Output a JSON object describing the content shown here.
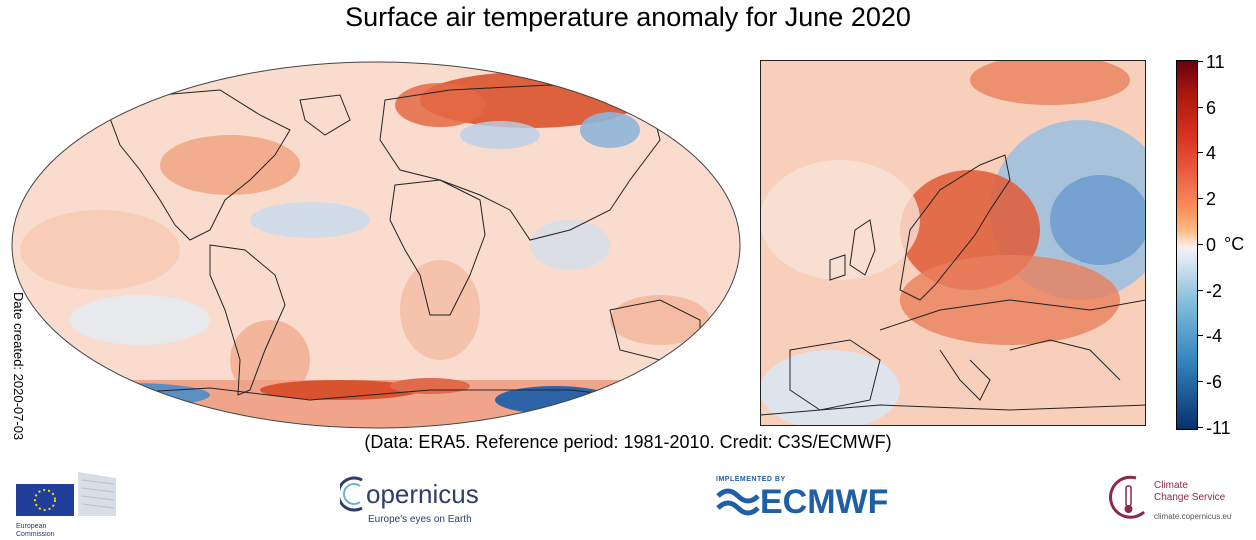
{
  "title": "Surface air temperature anomaly for June 2020",
  "side_note": "Date created: 2020-07-03",
  "credit": "(Data: ERA5.  Reference period: 1981-2010.  Credit: C3S/ECMWF)",
  "colorbar": {
    "unit": "°C",
    "ticks": [
      "11",
      "6",
      "4",
      "2",
      "0",
      "-2",
      "-4",
      "-6",
      "-11"
    ]
  },
  "logos": {
    "ec_line1": "European",
    "ec_line2": "Commission",
    "copernicus_name": "opernicus",
    "copernicus_tagline": "Europe's eyes on Earth",
    "ecmwf_small": "IMPLEMENTED BY",
    "ecmwf_name": "ECMWF",
    "c3s_line1": "Climate",
    "c3s_line2": "Change Service",
    "c3s_url": "climate.copernicus.eu"
  },
  "colors": {
    "warm": "#e34a33",
    "cool": "#6baed6",
    "neutral": "#f7f4f2"
  }
}
